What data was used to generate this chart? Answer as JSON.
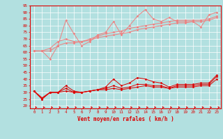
{
  "background_color": "#b2e0e0",
  "grid_color": "#c0d8d8",
  "xlabel": "Vent moyen/en rafales ( km/h )",
  "x_ticks": [
    0,
    1,
    2,
    3,
    4,
    5,
    6,
    7,
    8,
    9,
    10,
    11,
    12,
    13,
    14,
    15,
    16,
    17,
    18,
    19,
    20,
    21,
    22,
    23
  ],
  "ylim": [
    20,
    95
  ],
  "yticks": [
    20,
    25,
    30,
    35,
    40,
    45,
    50,
    55,
    60,
    65,
    70,
    75,
    80,
    85,
    90,
    95
  ],
  "series": {
    "upper_light_1": [
      61,
      61,
      55,
      65,
      84,
      74,
      65,
      68,
      73,
      75,
      83,
      73,
      80,
      87,
      92,
      85,
      83,
      86,
      83,
      83,
      83,
      79,
      88,
      90
    ],
    "upper_light_2": [
      61,
      61,
      63,
      68,
      70,
      68,
      68,
      70,
      72,
      74,
      75,
      76,
      78,
      79,
      80,
      81,
      82,
      83,
      84,
      84,
      84,
      84,
      85,
      87
    ],
    "upper_light_3": [
      61,
      61,
      61,
      65,
      67,
      67,
      68,
      69,
      71,
      72,
      73,
      74,
      75,
      77,
      78,
      79,
      80,
      81,
      82,
      82,
      83,
      83,
      84,
      86
    ],
    "lower_dark_1": [
      31,
      25,
      30,
      30,
      35,
      31,
      30,
      31,
      32,
      34,
      40,
      35,
      37,
      41,
      40,
      38,
      37,
      34,
      36,
      36,
      36,
      37,
      37,
      43
    ],
    "lower_dark_2": [
      31,
      25,
      30,
      30,
      33,
      30,
      30,
      31,
      32,
      33,
      35,
      33,
      34,
      36,
      36,
      35,
      35,
      33,
      35,
      35,
      35,
      36,
      36,
      42
    ],
    "lower_dark_3": [
      31,
      26,
      30,
      30,
      31,
      30,
      30,
      31,
      32,
      32,
      33,
      32,
      33,
      34,
      35,
      34,
      34,
      33,
      34,
      34,
      34,
      35,
      35,
      40
    ]
  },
  "color_upper_lines": "#f08080",
  "color_lower_lines": "#dd0000",
  "arrow_color": "#dd0000",
  "xlabel_color": "#dd0000",
  "tick_color": "#dd0000",
  "axis_color": "#dd0000",
  "figsize": [
    3.2,
    2.0
  ],
  "dpi": 100
}
